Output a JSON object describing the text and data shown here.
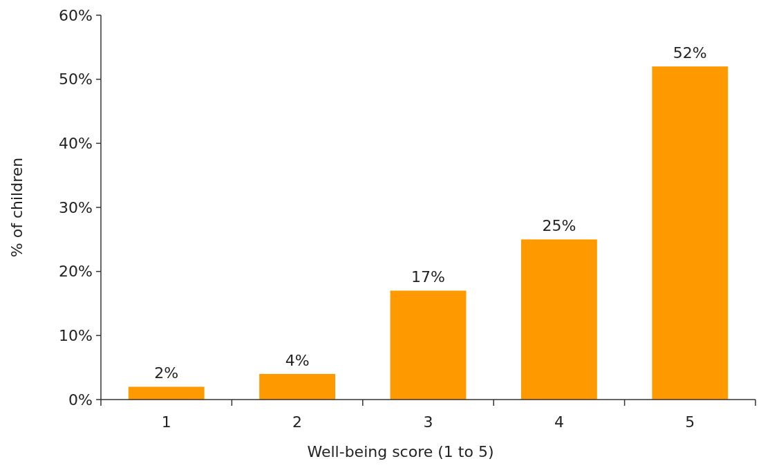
{
  "chart_data": {
    "type": "bar",
    "xlabel": "Well-being score (1 to 5)",
    "ylabel": "% of children",
    "categories": [
      "1",
      "2",
      "3",
      "4",
      "5"
    ],
    "values": [
      2,
      4,
      17,
      25,
      52
    ],
    "color": "#ff9900",
    "value_labels": [
      "2%",
      "4%",
      "17%",
      "25%",
      "52%"
    ],
    "ylim": [
      0,
      60
    ],
    "yticks": [
      {
        "value": 0,
        "label": "0%"
      },
      {
        "value": 10,
        "label": "10%"
      },
      {
        "value": 20,
        "label": "20%"
      },
      {
        "value": 30,
        "label": "30%"
      },
      {
        "value": 40,
        "label": "40%"
      },
      {
        "value": 50,
        "label": "50%"
      },
      {
        "value": 60,
        "label": "60%"
      }
    ],
    "grid": false
  }
}
